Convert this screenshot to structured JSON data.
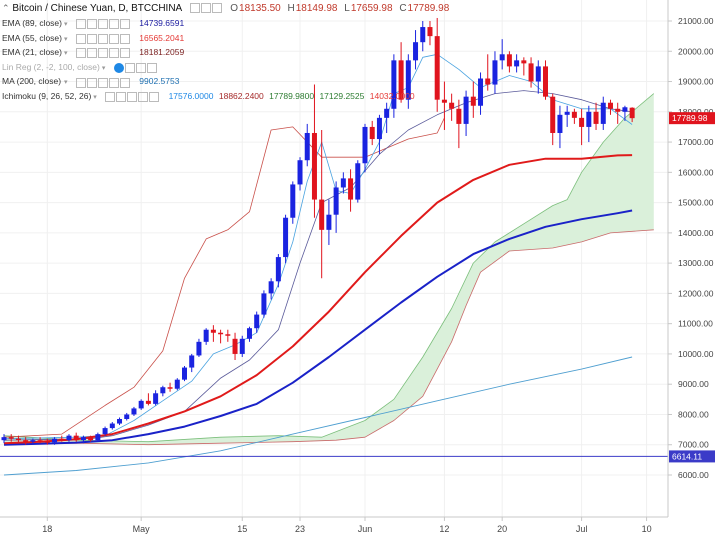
{
  "title": "Bitcoin / Chinese Yuan, D, BTCCHINA",
  "ohlc": {
    "labels": [
      "O",
      "H",
      "L",
      "C"
    ],
    "values": [
      "18135.50",
      "18149.98",
      "17659.98",
      "17789.98"
    ]
  },
  "indicators": [
    {
      "name": "EMA (89, close)",
      "value": "14739.6591",
      "color": "#1a1aa0"
    },
    {
      "name": "EMA (55, close)",
      "value": "16565.2041",
      "color": "#e53935"
    },
    {
      "name": "EMA (21, close)",
      "value": "18181.2059",
      "color": "#7a1f1f"
    },
    {
      "name": "Lin Reg (2, -2, 100, close)",
      "value": "",
      "color": "#aaaaaa"
    },
    {
      "name": "MA (200, close)",
      "value": "9902.5753",
      "color": "#1e6fb0"
    }
  ],
  "ichimoku": {
    "name": "Ichimoku (9, 26, 52, 26)",
    "values": [
      {
        "text": "17576.0000",
        "color": "#1e88e5"
      },
      {
        "text": "18862.2400",
        "color": "#a52a2a"
      },
      {
        "text": "17789.9800",
        "color": "#2e7d32"
      },
      {
        "text": "17129.2525",
        "color": "#2e7d32"
      },
      {
        "text": "14032.0000",
        "color": "#e53935"
      }
    ]
  },
  "colors": {
    "up": "#1a23e0",
    "down": "#e0141e",
    "ema55": "#e01a1a",
    "ema89": "#1a22c8",
    "ma200": "#4f9fd0",
    "tenkan": "#4aa3e0",
    "kijun": "#5a5a9a",
    "chikou": "#c9504a",
    "span_a": "#7cbf7c",
    "span_b": "#c96a6a",
    "cloud_bull": "#daf0da",
    "cloud_bear": "#f6d7d7",
    "hline": "#3b3bc8"
  },
  "chart_data": {
    "type": "candlestick",
    "title": "Bitcoin / Chinese Yuan, D, BTCCHINA",
    "y_ticks": [
      6000,
      7000,
      8000,
      9000,
      10000,
      11000,
      12000,
      13000,
      14000,
      15000,
      16000,
      17000,
      18000,
      19000,
      20000,
      21000
    ],
    "y_tick_labels": [
      "6000.00",
      "7000.00",
      "8000.00",
      "9000.00",
      "10000.00",
      "11000.00",
      "12000.00",
      "13000.00",
      "14000.00",
      "15000.00",
      "16000.00",
      "17000.00",
      "18000.00",
      "19000.00",
      "20000.00",
      "21000.00"
    ],
    "ylim": [
      5000,
      21500
    ],
    "x_ticks": [
      {
        "label": "18",
        "day": 6
      },
      {
        "label": "May",
        "day": 19
      },
      {
        "label": "15",
        "day": 33
      },
      {
        "label": "23",
        "day": 41
      },
      {
        "label": "Jun",
        "day": 50
      },
      {
        "label": "12",
        "day": 61
      },
      {
        "label": "20",
        "day": 69
      },
      {
        "label": "Jul",
        "day": 80
      },
      {
        "label": "10",
        "day": 89
      }
    ],
    "xlim": [
      0,
      90
    ],
    "last_price": 17789.98,
    "last_price_label": "17789.98",
    "hline_value": 6614.11,
    "hline_label": "6614.11",
    "candles": [
      {
        "d": 0,
        "o": 7150,
        "h": 7350,
        "l": 7050,
        "c": 7250
      },
      {
        "d": 1,
        "o": 7250,
        "h": 7350,
        "l": 7100,
        "c": 7200
      },
      {
        "d": 2,
        "o": 7200,
        "h": 7300,
        "l": 7080,
        "c": 7150
      },
      {
        "d": 3,
        "o": 7150,
        "h": 7250,
        "l": 7000,
        "c": 7100
      },
      {
        "d": 4,
        "o": 7100,
        "h": 7200,
        "l": 7000,
        "c": 7150
      },
      {
        "d": 5,
        "o": 7150,
        "h": 7250,
        "l": 7050,
        "c": 7100
      },
      {
        "d": 6,
        "o": 7100,
        "h": 7200,
        "l": 7000,
        "c": 7080
      },
      {
        "d": 7,
        "o": 7080,
        "h": 7250,
        "l": 7000,
        "c": 7200
      },
      {
        "d": 8,
        "o": 7200,
        "h": 7300,
        "l": 7100,
        "c": 7150
      },
      {
        "d": 9,
        "o": 7150,
        "h": 7350,
        "l": 7100,
        "c": 7300
      },
      {
        "d": 10,
        "o": 7300,
        "h": 7400,
        "l": 7100,
        "c": 7150
      },
      {
        "d": 11,
        "o": 7150,
        "h": 7300,
        "l": 7050,
        "c": 7250
      },
      {
        "d": 12,
        "o": 7250,
        "h": 7300,
        "l": 7100,
        "c": 7150
      },
      {
        "d": 13,
        "o": 7150,
        "h": 7400,
        "l": 7100,
        "c": 7350
      },
      {
        "d": 14,
        "o": 7350,
        "h": 7600,
        "l": 7300,
        "c": 7550
      },
      {
        "d": 15,
        "o": 7550,
        "h": 7750,
        "l": 7500,
        "c": 7700
      },
      {
        "d": 16,
        "o": 7700,
        "h": 7900,
        "l": 7650,
        "c": 7850
      },
      {
        "d": 17,
        "o": 7850,
        "h": 8050,
        "l": 7800,
        "c": 8000
      },
      {
        "d": 18,
        "o": 8000,
        "h": 8250,
        "l": 7950,
        "c": 8200
      },
      {
        "d": 19,
        "o": 8200,
        "h": 8500,
        "l": 8150,
        "c": 8450
      },
      {
        "d": 20,
        "o": 8450,
        "h": 8700,
        "l": 8300,
        "c": 8350
      },
      {
        "d": 21,
        "o": 8350,
        "h": 8800,
        "l": 8300,
        "c": 8700
      },
      {
        "d": 22,
        "o": 8700,
        "h": 8950,
        "l": 8600,
        "c": 8900
      },
      {
        "d": 23,
        "o": 8900,
        "h": 9050,
        "l": 8750,
        "c": 8850
      },
      {
        "d": 24,
        "o": 8850,
        "h": 9200,
        "l": 8800,
        "c": 9150
      },
      {
        "d": 25,
        "o": 9150,
        "h": 9600,
        "l": 9100,
        "c": 9550
      },
      {
        "d": 26,
        "o": 9550,
        "h": 10000,
        "l": 9400,
        "c": 9950
      },
      {
        "d": 27,
        "o": 9950,
        "h": 10500,
        "l": 9900,
        "c": 10400
      },
      {
        "d": 28,
        "o": 10400,
        "h": 10850,
        "l": 10300,
        "c": 10800
      },
      {
        "d": 29,
        "o": 10800,
        "h": 10950,
        "l": 10400,
        "c": 10700
      },
      {
        "d": 30,
        "o": 10700,
        "h": 10800,
        "l": 10350,
        "c": 10650
      },
      {
        "d": 31,
        "o": 10650,
        "h": 10800,
        "l": 10400,
        "c": 10600
      },
      {
        "d": 32,
        "o": 10500,
        "h": 10700,
        "l": 9800,
        "c": 10000
      },
      {
        "d": 33,
        "o": 10000,
        "h": 10600,
        "l": 9900,
        "c": 10500
      },
      {
        "d": 34,
        "o": 10500,
        "h": 10900,
        "l": 10400,
        "c": 10850
      },
      {
        "d": 35,
        "o": 10850,
        "h": 11400,
        "l": 10700,
        "c": 11300
      },
      {
        "d": 36,
        "o": 11300,
        "h": 12100,
        "l": 11200,
        "c": 12000
      },
      {
        "d": 37,
        "o": 12000,
        "h": 12500,
        "l": 11800,
        "c": 12400
      },
      {
        "d": 38,
        "o": 12400,
        "h": 13300,
        "l": 12200,
        "c": 13200
      },
      {
        "d": 39,
        "o": 13200,
        "h": 14600,
        "l": 13000,
        "c": 14500
      },
      {
        "d": 40,
        "o": 14500,
        "h": 15700,
        "l": 14300,
        "c": 15600
      },
      {
        "d": 41,
        "o": 15600,
        "h": 16500,
        "l": 15400,
        "c": 16400
      },
      {
        "d": 42,
        "o": 16400,
        "h": 17600,
        "l": 16200,
        "c": 17300
      },
      {
        "d": 43,
        "o": 17300,
        "h": 18900,
        "l": 14500,
        "c": 15100
      },
      {
        "d": 44,
        "o": 15100,
        "h": 17400,
        "l": 12500,
        "c": 14100
      },
      {
        "d": 45,
        "o": 14100,
        "h": 15100,
        "l": 13600,
        "c": 14600
      },
      {
        "d": 46,
        "o": 14600,
        "h": 15700,
        "l": 14000,
        "c": 15500
      },
      {
        "d": 47,
        "o": 15500,
        "h": 16000,
        "l": 15300,
        "c": 15800
      },
      {
        "d": 48,
        "o": 15800,
        "h": 16100,
        "l": 14700,
        "c": 15100
      },
      {
        "d": 49,
        "o": 15100,
        "h": 16400,
        "l": 15000,
        "c": 16300
      },
      {
        "d": 50,
        "o": 16300,
        "h": 17600,
        "l": 16000,
        "c": 17500
      },
      {
        "d": 51,
        "o": 17500,
        "h": 17700,
        "l": 16900,
        "c": 17100
      },
      {
        "d": 52,
        "o": 17100,
        "h": 17900,
        "l": 16600,
        "c": 17800
      },
      {
        "d": 53,
        "o": 17800,
        "h": 18300,
        "l": 17300,
        "c": 18100
      },
      {
        "d": 54,
        "o": 18100,
        "h": 19900,
        "l": 17800,
        "c": 19700
      },
      {
        "d": 55,
        "o": 19700,
        "h": 20300,
        "l": 18300,
        "c": 18400
      },
      {
        "d": 56,
        "o": 18400,
        "h": 19900,
        "l": 18100,
        "c": 19700
      },
      {
        "d": 57,
        "o": 19700,
        "h": 20700,
        "l": 19400,
        "c": 20300
      },
      {
        "d": 58,
        "o": 20300,
        "h": 21000,
        "l": 20000,
        "c": 20800
      },
      {
        "d": 59,
        "o": 20800,
        "h": 21000,
        "l": 20200,
        "c": 20500
      },
      {
        "d": 60,
        "o": 20500,
        "h": 21100,
        "l": 18000,
        "c": 18400
      },
      {
        "d": 61,
        "o": 18400,
        "h": 19000,
        "l": 17400,
        "c": 18300
      },
      {
        "d": 62,
        "o": 18300,
        "h": 18600,
        "l": 17700,
        "c": 18100
      },
      {
        "d": 63,
        "o": 18100,
        "h": 18400,
        "l": 16800,
        "c": 17600
      },
      {
        "d": 64,
        "o": 17600,
        "h": 18700,
        "l": 17200,
        "c": 18500
      },
      {
        "d": 65,
        "o": 18500,
        "h": 19000,
        "l": 17800,
        "c": 18200
      },
      {
        "d": 66,
        "o": 18200,
        "h": 19300,
        "l": 17900,
        "c": 19100
      },
      {
        "d": 67,
        "o": 19100,
        "h": 19900,
        "l": 18700,
        "c": 18900
      },
      {
        "d": 68,
        "o": 18900,
        "h": 20000,
        "l": 18600,
        "c": 19700
      },
      {
        "d": 69,
        "o": 19700,
        "h": 20400,
        "l": 19400,
        "c": 19900
      },
      {
        "d": 70,
        "o": 19900,
        "h": 20000,
        "l": 19300,
        "c": 19500
      },
      {
        "d": 71,
        "o": 19500,
        "h": 19900,
        "l": 19300,
        "c": 19700
      },
      {
        "d": 72,
        "o": 19700,
        "h": 19800,
        "l": 19200,
        "c": 19600
      },
      {
        "d": 73,
        "o": 19600,
        "h": 19800,
        "l": 18800,
        "c": 19000
      },
      {
        "d": 74,
        "o": 19000,
        "h": 19700,
        "l": 18600,
        "c": 19500
      },
      {
        "d": 75,
        "o": 19500,
        "h": 19700,
        "l": 18400,
        "c": 18500
      },
      {
        "d": 76,
        "o": 18500,
        "h": 18600,
        "l": 16900,
        "c": 17300
      },
      {
        "d": 77,
        "o": 17300,
        "h": 18200,
        "l": 16800,
        "c": 17900
      },
      {
        "d": 78,
        "o": 17900,
        "h": 18200,
        "l": 17500,
        "c": 18000
      },
      {
        "d": 79,
        "o": 18000,
        "h": 18100,
        "l": 17600,
        "c": 17800
      },
      {
        "d": 80,
        "o": 17800,
        "h": 18100,
        "l": 16900,
        "c": 17500
      },
      {
        "d": 81,
        "o": 17500,
        "h": 18200,
        "l": 17000,
        "c": 18000
      },
      {
        "d": 82,
        "o": 18000,
        "h": 18300,
        "l": 17400,
        "c": 17600
      },
      {
        "d": 83,
        "o": 17600,
        "h": 18500,
        "l": 17400,
        "c": 18300
      },
      {
        "d": 84,
        "o": 18300,
        "h": 18400,
        "l": 17900,
        "c": 18100
      },
      {
        "d": 85,
        "o": 18100,
        "h": 18300,
        "l": 17600,
        "c": 18000
      },
      {
        "d": 86,
        "o": 18000,
        "h": 18200,
        "l": 17700,
        "c": 18150
      },
      {
        "d": 87,
        "o": 18135.5,
        "h": 18149.98,
        "l": 17659.98,
        "c": 17789.98
      }
    ],
    "ema55": [
      [
        0,
        7050
      ],
      [
        5,
        7100
      ],
      [
        10,
        7180
      ],
      [
        15,
        7350
      ],
      [
        20,
        7700
      ],
      [
        25,
        8100
      ],
      [
        30,
        8600
      ],
      [
        35,
        9300
      ],
      [
        40,
        10250
      ],
      [
        45,
        11400
      ],
      [
        50,
        12700
      ],
      [
        55,
        13900
      ],
      [
        60,
        15000
      ],
      [
        65,
        15750
      ],
      [
        70,
        16250
      ],
      [
        75,
        16450
      ],
      [
        80,
        16450
      ],
      [
        85,
        16560
      ],
      [
        87,
        16570
      ]
    ],
    "ema89": [
      [
        0,
        7000
      ],
      [
        5,
        7030
      ],
      [
        10,
        7070
      ],
      [
        15,
        7150
      ],
      [
        20,
        7350
      ],
      [
        25,
        7600
      ],
      [
        30,
        7950
      ],
      [
        35,
        8350
      ],
      [
        40,
        9050
      ],
      [
        45,
        9900
      ],
      [
        50,
        10800
      ],
      [
        55,
        11700
      ],
      [
        60,
        12550
      ],
      [
        65,
        13300
      ],
      [
        70,
        13800
      ],
      [
        75,
        14200
      ],
      [
        80,
        14450
      ],
      [
        85,
        14650
      ],
      [
        87,
        14740
      ]
    ],
    "ma200": [
      [
        0,
        6000
      ],
      [
        10,
        6150
      ],
      [
        20,
        6400
      ],
      [
        30,
        6800
      ],
      [
        40,
        7350
      ],
      [
        50,
        7900
      ],
      [
        60,
        8450
      ],
      [
        70,
        9000
      ],
      [
        80,
        9500
      ],
      [
        87,
        9900
      ]
    ],
    "tenkan": [
      [
        0,
        7200
      ],
      [
        10,
        7250
      ],
      [
        14,
        7300
      ],
      [
        18,
        7800
      ],
      [
        22,
        8450
      ],
      [
        26,
        9100
      ],
      [
        29,
        10000
      ],
      [
        32,
        10300
      ],
      [
        35,
        10700
      ],
      [
        38,
        12300
      ],
      [
        40,
        13700
      ],
      [
        42,
        15700
      ],
      [
        44,
        17000
      ],
      [
        46,
        15400
      ],
      [
        48,
        15300
      ],
      [
        50,
        16100
      ],
      [
        52,
        17000
      ],
      [
        54,
        18600
      ],
      [
        56,
        18800
      ],
      [
        58,
        19800
      ],
      [
        60,
        19900
      ],
      [
        63,
        19400
      ],
      [
        66,
        18800
      ],
      [
        70,
        19200
      ],
      [
        73,
        19000
      ],
      [
        76,
        18400
      ],
      [
        80,
        18100
      ],
      [
        84,
        18100
      ],
      [
        87,
        17580
      ]
    ],
    "kijun": [
      [
        0,
        7150
      ],
      [
        12,
        7200
      ],
      [
        15,
        7300
      ],
      [
        20,
        7650
      ],
      [
        25,
        8100
      ],
      [
        30,
        9200
      ],
      [
        34,
        9800
      ],
      [
        38,
        10800
      ],
      [
        41,
        13000
      ],
      [
        44,
        15000
      ],
      [
        48,
        15500
      ],
      [
        52,
        16600
      ],
      [
        56,
        17400
      ],
      [
        60,
        17900
      ],
      [
        64,
        18300
      ],
      [
        68,
        18600
      ],
      [
        72,
        18700
      ],
      [
        76,
        18600
      ],
      [
        80,
        18400
      ],
      [
        84,
        18100
      ],
      [
        87,
        18000
      ]
    ],
    "chikou": [
      [
        0,
        7250
      ],
      [
        8,
        7350
      ],
      [
        14,
        8300
      ],
      [
        18,
        8900
      ],
      [
        22,
        10100
      ],
      [
        25,
        12500
      ],
      [
        28,
        13800
      ],
      [
        31,
        14100
      ],
      [
        34,
        14700
      ],
      [
        37,
        17400
      ],
      [
        40,
        17500
      ],
      [
        44,
        16500
      ],
      [
        50,
        16500
      ],
      [
        56,
        17100
      ],
      [
        60,
        17300
      ],
      [
        61,
        17800
      ]
    ],
    "span_a": [
      [
        0,
        7300
      ],
      [
        10,
        7150
      ],
      [
        20,
        7100
      ],
      [
        30,
        7250
      ],
      [
        38,
        7300
      ],
      [
        44,
        7250
      ],
      [
        50,
        7800
      ],
      [
        54,
        8500
      ],
      [
        58,
        9900
      ],
      [
        62,
        11500
      ],
      [
        65,
        13000
      ],
      [
        68,
        13700
      ],
      [
        72,
        14300
      ],
      [
        76,
        14900
      ],
      [
        78,
        15100
      ],
      [
        80,
        16000
      ],
      [
        83,
        17000
      ],
      [
        86,
        17800
      ],
      [
        90,
        18600
      ]
    ],
    "span_b": [
      [
        0,
        7000
      ],
      [
        10,
        7050
      ],
      [
        20,
        7000
      ],
      [
        30,
        7050
      ],
      [
        40,
        7100
      ],
      [
        46,
        7150
      ],
      [
        50,
        7250
      ],
      [
        54,
        7800
      ],
      [
        58,
        8600
      ],
      [
        62,
        10400
      ],
      [
        64,
        11600
      ],
      [
        66,
        12700
      ],
      [
        70,
        13400
      ],
      [
        76,
        13500
      ],
      [
        80,
        13700
      ],
      [
        84,
        14000
      ],
      [
        90,
        14100
      ]
    ]
  }
}
